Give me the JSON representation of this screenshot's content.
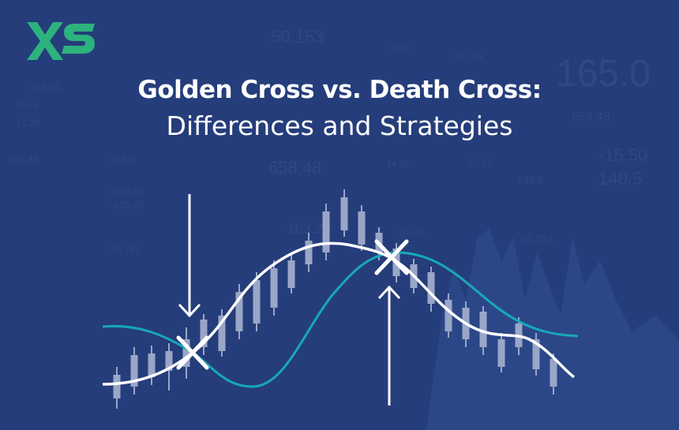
{
  "logo": {
    "text": "XS",
    "color": "#2db27d"
  },
  "title": {
    "line1": "Golden Cross vs. Death Cross:",
    "line2": "Differences and Strategies"
  },
  "background_numbers": [
    "50.153",
    "165.0",
    "165.0",
    "-15.50",
    "50.153",
    "658.48",
    "140.5",
    "14.25",
    "14.25",
    "658.48",
    "-15.50",
    "165.0",
    "658.48",
    "140.5",
    "-15.50",
    "140.5",
    "-103.20",
    "-103.20",
    "-103.20",
    "50.153",
    "-103.20",
    "50.153"
  ],
  "colors": {
    "background": "#253d7a",
    "price_ma": "#ffffff",
    "slow_ma": "#17a9b8",
    "candles": "#9aa6c8"
  }
}
